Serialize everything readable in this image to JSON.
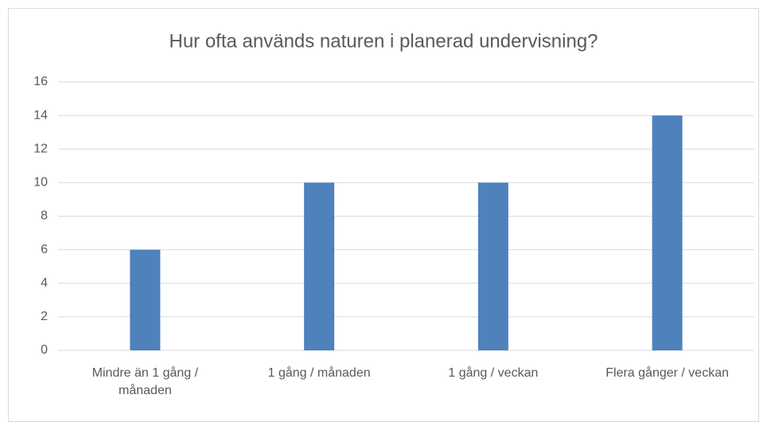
{
  "chart_data": {
    "type": "bar",
    "title": "Hur ofta används naturen i planerad undervisning?",
    "categories": [
      "Mindre än 1 gång / månaden",
      "1 gång / månaden",
      "1 gång / veckan",
      "Flera gånger / veckan"
    ],
    "values": [
      6,
      10,
      10,
      14
    ],
    "color": "#4f81bd",
    "ylim": [
      0,
      16
    ],
    "yticks": [
      0,
      2,
      4,
      6,
      8,
      10,
      12,
      14,
      16
    ],
    "grid": true
  }
}
